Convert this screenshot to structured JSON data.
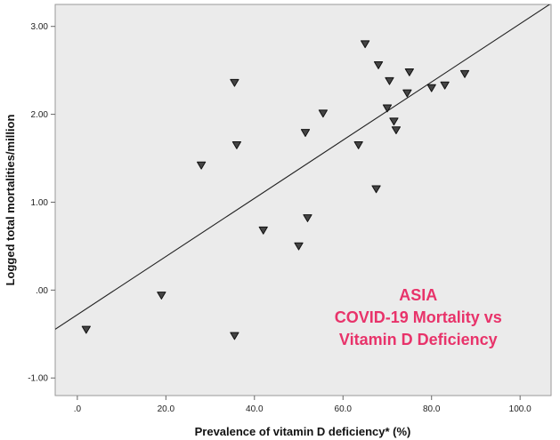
{
  "chart_data": {
    "type": "scatter",
    "title": "",
    "xlabel": "Prevalence of vitamin D deficiency* (%)",
    "ylabel": "Logged total mortalities/million",
    "xlim": [
      -5,
      107
    ],
    "ylim": [
      -1.2,
      3.25
    ],
    "x_ticks": [
      0,
      20,
      40,
      60,
      80,
      100
    ],
    "x_tick_labels": [
      ".0",
      "20.0",
      "40.0",
      "60.0",
      "80.0",
      "100.0"
    ],
    "y_ticks": [
      -1,
      0,
      1,
      2,
      3
    ],
    "y_tick_labels": [
      "-1.00",
      ".00",
      "1.00",
      "2.00",
      "3.00"
    ],
    "grid": false,
    "legend": "none",
    "marker": "inverted-triangle",
    "plot_background": "#ebebeb",
    "fit_line": {
      "intercept": -0.28,
      "slope": 0.0331
    },
    "annotation": {
      "lines": [
        "ASIA",
        "COVID-19 Mortality vs",
        "Vitamin D Deficiency"
      ],
      "color": "#e8336a"
    },
    "points": [
      {
        "x": 2,
        "y": -0.45
      },
      {
        "x": 19,
        "y": -0.06
      },
      {
        "x": 28,
        "y": 1.42
      },
      {
        "x": 35.5,
        "y": 2.36
      },
      {
        "x": 36,
        "y": 1.65
      },
      {
        "x": 35.5,
        "y": -0.52
      },
      {
        "x": 42,
        "y": 0.68
      },
      {
        "x": 50,
        "y": 0.5
      },
      {
        "x": 51.5,
        "y": 1.79
      },
      {
        "x": 52,
        "y": 0.82
      },
      {
        "x": 55.5,
        "y": 2.01
      },
      {
        "x": 63.5,
        "y": 1.65
      },
      {
        "x": 65,
        "y": 2.8
      },
      {
        "x": 67.5,
        "y": 1.15
      },
      {
        "x": 68,
        "y": 2.56
      },
      {
        "x": 70,
        "y": 2.07
      },
      {
        "x": 70.5,
        "y": 2.38
      },
      {
        "x": 71.5,
        "y": 1.92
      },
      {
        "x": 72,
        "y": 1.82
      },
      {
        "x": 74.5,
        "y": 2.24
      },
      {
        "x": 75,
        "y": 2.48
      },
      {
        "x": 80,
        "y": 2.3
      },
      {
        "x": 83,
        "y": 2.33
      },
      {
        "x": 87.5,
        "y": 2.46
      }
    ]
  }
}
